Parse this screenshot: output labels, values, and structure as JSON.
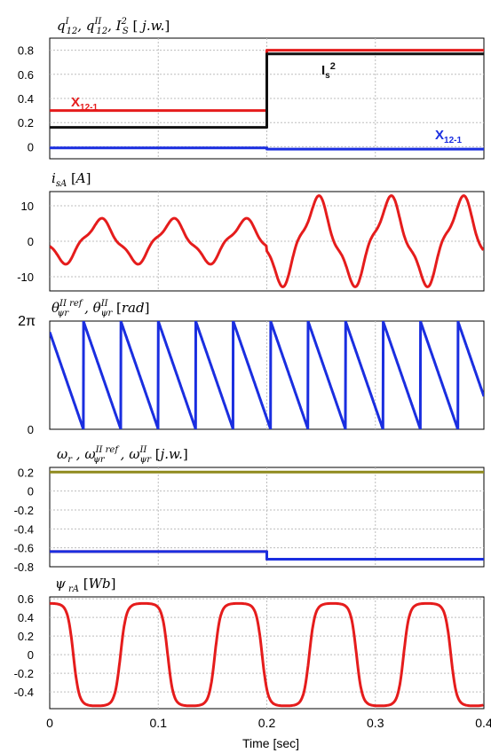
{
  "figure": {
    "x_axis_label": "Time [sec]",
    "x_ticks": [
      "0",
      "0.1",
      "0.2",
      "0.3",
      "0.4"
    ]
  },
  "chart_data": [
    {
      "type": "line",
      "title": "q_12^I, q_12^II, I_S^2 [j.w.]",
      "ylabel": "j.w.",
      "xlim": [
        0,
        0.4
      ],
      "ylim": [
        -0.1,
        0.9
      ],
      "y_ticks": [
        "0.8",
        "0.6",
        "0.4",
        "0.2",
        "0"
      ],
      "grid": true,
      "series": [
        {
          "name": "x12-1 (red)",
          "color": "#e51c1c",
          "x": [
            0,
            0.2,
            0.2,
            0.4
          ],
          "y": [
            0.3,
            0.3,
            0.8,
            0.8
          ]
        },
        {
          "name": "Is2",
          "color": "#111111",
          "x": [
            0,
            0.2,
            0.2,
            0.4
          ],
          "y": [
            0.16,
            0.16,
            0.77,
            0.77
          ]
        },
        {
          "name": "x12-1 (blue)",
          "color": "#1a2ee0",
          "x": [
            0,
            0.2,
            0.2,
            0.4
          ],
          "y": [
            -0.01,
            -0.01,
            -0.02,
            -0.02
          ]
        }
      ],
      "annotations": [
        {
          "text": "x",
          "sub": "12-1",
          "color": "#e51c1c"
        },
        {
          "text": "I",
          "sub": "s",
          "sup": "2",
          "color": "#111111"
        },
        {
          "text": "x",
          "sub": "12-1",
          "color": "#1a2ee0"
        }
      ]
    },
    {
      "type": "line",
      "title": "i_sA [A]",
      "ylabel": "A",
      "xlim": [
        0,
        0.4
      ],
      "ylim": [
        -14,
        14
      ],
      "y_ticks": [
        "10",
        "0",
        "-10"
      ],
      "grid": true,
      "series": [
        {
          "name": "isA",
          "color": "#e51c1c",
          "description_values": {
            "pre_0.2_amplitude": 6.3,
            "post_0.2_amplitude": 12.5,
            "frequency_hz": 15
          }
        }
      ]
    },
    {
      "type": "line",
      "title": "θ_ψr^II ref, θ_ψr^II [rad]",
      "ylabel": "rad",
      "xlim": [
        0,
        0.4
      ],
      "ylim": [
        0,
        6.2832
      ],
      "y_ticks": [
        "2π",
        "0"
      ],
      "grid": true,
      "series": [
        {
          "name": "theta",
          "color": "#1a2ee0",
          "sawtooth_period_s": 0.0345,
          "direction": "decreasing"
        }
      ]
    },
    {
      "type": "line",
      "title": "ω_r, ω_ψr^II ref, ω_ψr^II [j.w.]",
      "ylabel": "j.w.",
      "xlim": [
        0,
        0.4
      ],
      "ylim": [
        -0.8,
        0.25
      ],
      "y_ticks": [
        "0.2",
        "0",
        "-0.2",
        "-0.4",
        "-0.6",
        "-0.8"
      ],
      "grid": true,
      "series": [
        {
          "name": "ωr",
          "color": "#8f8a1e",
          "x": [
            0,
            0.4
          ],
          "y": [
            0.2,
            0.2
          ]
        },
        {
          "name": "ωψr ref",
          "color": "#e51c1c",
          "x": [
            0,
            0.2,
            0.2,
            0.4
          ],
          "y": [
            -0.64,
            -0.64,
            -0.72,
            -0.72
          ]
        },
        {
          "name": "ωψr",
          "color": "#1a2ee0",
          "x": [
            0,
            0.2,
            0.2,
            0.4
          ],
          "y": [
            -0.64,
            -0.64,
            -0.72,
            -0.72
          ]
        }
      ]
    },
    {
      "type": "line",
      "title": "ψ_rA [Wb]",
      "ylabel": "Wb",
      "xlim": [
        0,
        0.4
      ],
      "ylim": [
        -0.58,
        0.62
      ],
      "y_ticks": [
        "0.6",
        "0.4",
        "0.2",
        "0",
        "-0.2",
        "-0.4"
      ],
      "grid": true,
      "series": [
        {
          "name": "ψrA",
          "color": "#e51c1c",
          "amplitude": 0.55,
          "frequency_hz": 11.5
        }
      ]
    }
  ]
}
